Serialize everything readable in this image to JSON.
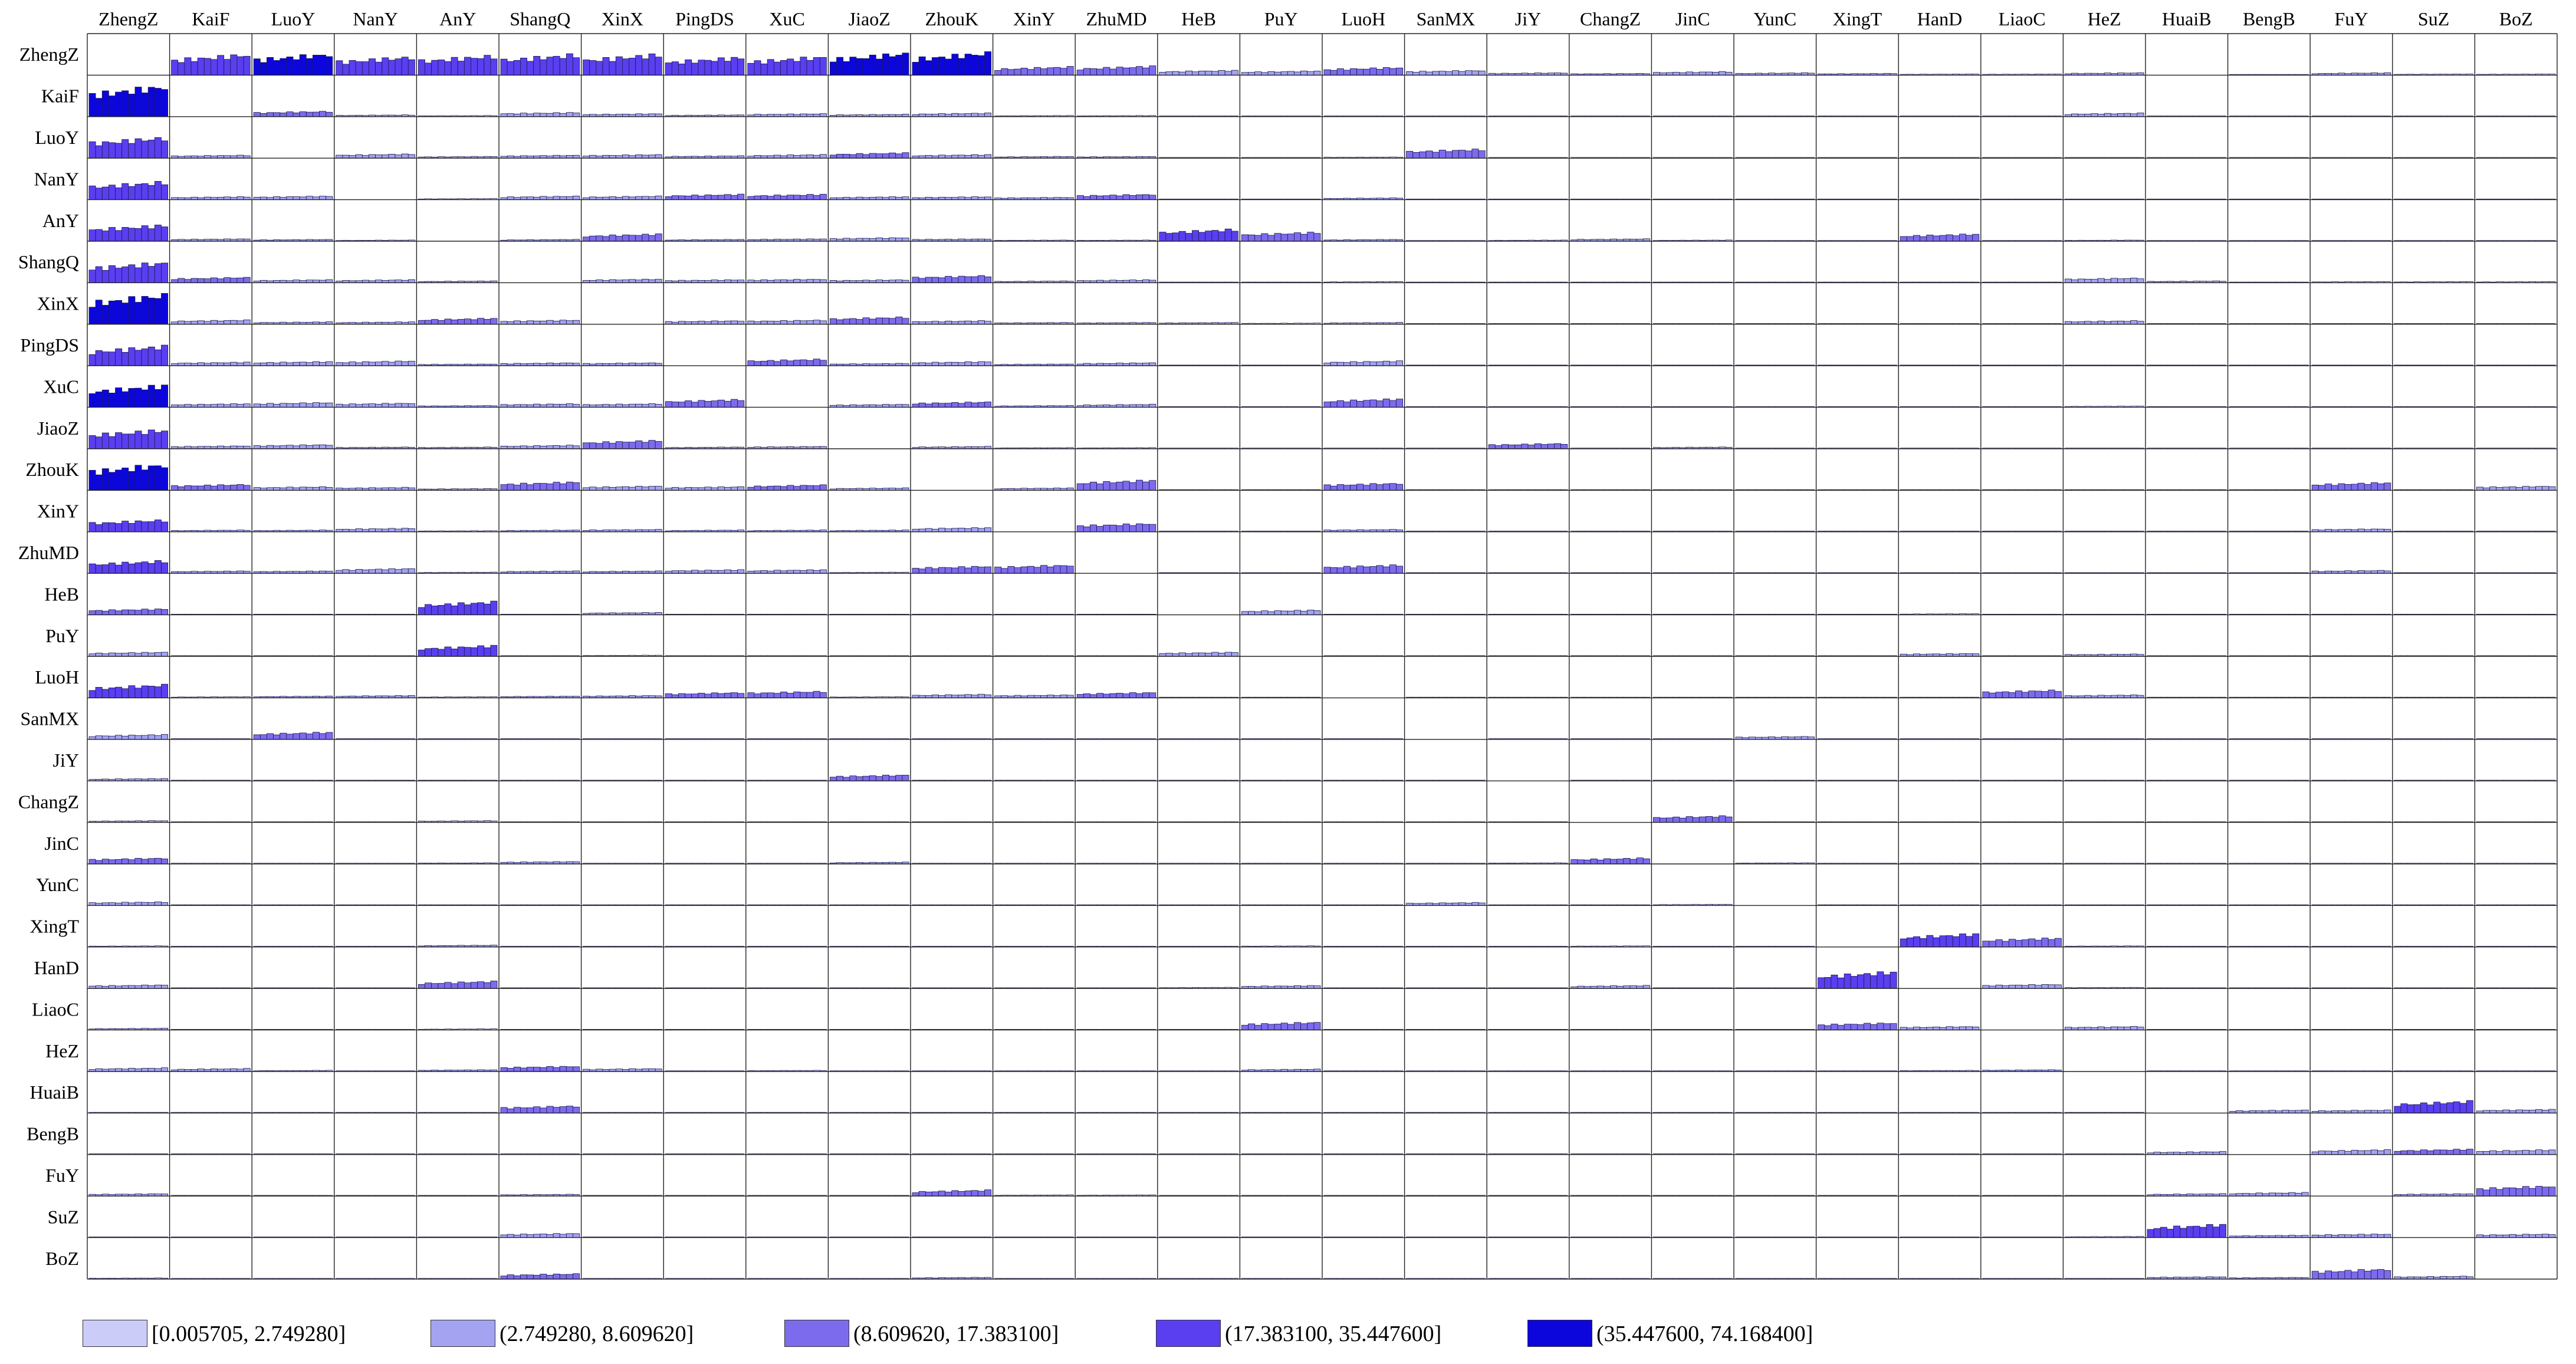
{
  "chart_data": {
    "type": "bar",
    "subtype": "origin-destination matrix of small-multiple bar charts (12 bars per cell)",
    "cities": [
      "ZhengZ",
      "KaiF",
      "LuoY",
      "NanY",
      "AnY",
      "ShangQ",
      "XinX",
      "PingDS",
      "XuC",
      "JiaoZ",
      "ZhouK",
      "XinY",
      "ZhuMD",
      "HeB",
      "PuY",
      "LuoH",
      "SanMX",
      "JiY",
      "ChangZ",
      "JinC",
      "YunC",
      "XingT",
      "HanD",
      "LiaoC",
      "HeZ",
      "HuaiB",
      "BengB",
      "FuY",
      "SuZ",
      "BoZ"
    ],
    "bars_per_cell": 12,
    "cell_ylim": [
      0,
      74.1684
    ],
    "grid": true,
    "legend_position": "bottom",
    "color_classes": [
      {
        "label": "[0.005705, 2.749280]",
        "min": 0.005705,
        "max": 2.74928,
        "color": "#ccccf9"
      },
      {
        "label": "(2.749280, 8.609620]",
        "min": 2.74928,
        "max": 8.60962,
        "color": "#a3a3f2"
      },
      {
        "label": "(8.609620, 17.383100]",
        "min": 8.60962,
        "max": 17.3831,
        "color": "#7d6bee"
      },
      {
        "label": "(17.383100, 35.447600]",
        "min": 17.3831,
        "max": 35.4476,
        "color": "#5a3ff0"
      },
      {
        "label": "(35.447600, 74.168400]",
        "min": 35.4476,
        "max": 74.1684,
        "color": "#0c06dd"
      }
    ],
    "cell_levels": [
      [
        0,
        35,
        36,
        31,
        33,
        35,
        35,
        30,
        31,
        37,
        38,
        14,
        15,
        8,
        7,
        13,
        8,
        4,
        3,
        6,
        4,
        3,
        2,
        2,
        4,
        0,
        1,
        4,
        2,
        2
      ],
      [
        52,
        0,
        9,
        3,
        2,
        7,
        5,
        3,
        5,
        4,
        6,
        2,
        2,
        0.5,
        0.5,
        1,
        0.5,
        0.3,
        0.2,
        0.3,
        0.2,
        0.2,
        0.2,
        0.2,
        6,
        0.05,
        0.05,
        0.3,
        0.05,
        0.05
      ],
      [
        35,
        5,
        0,
        7,
        3,
        5,
        6,
        4,
        6,
        9,
        6,
        3,
        3,
        1,
        0.5,
        2,
        15,
        1,
        0.5,
        0.5,
        0.5,
        0.3,
        0.3,
        0.3,
        1,
        0.05,
        0.05,
        0.5,
        0.05,
        0.05
      ],
      [
        30,
        5,
        6,
        0,
        2,
        6,
        6,
        9,
        9,
        5,
        5,
        4,
        9,
        0.3,
        0.3,
        3,
        1,
        0.3,
        0.2,
        0.2,
        0.2,
        0.1,
        0.1,
        0.1,
        1,
        0.05,
        0.05,
        0.5,
        0.05,
        0.05
      ],
      [
        27,
        4,
        3,
        2,
        0,
        3,
        12,
        3,
        4,
        6,
        4,
        2,
        2,
        20,
        15,
        3,
        1,
        2,
        4,
        2,
        1,
        1,
        12,
        1,
        2,
        0.1,
        0.1,
        0.5,
        0.1,
        0.1
      ],
      [
        34,
        9,
        5,
        5,
        3,
        0,
        6,
        5,
        6,
        5,
        12,
        3,
        5,
        0.5,
        0.3,
        2,
        1,
        0.5,
        0.2,
        0.2,
        0.2,
        0.1,
        0.2,
        0.2,
        8,
        3,
        0.5,
        2,
        2,
        2
      ],
      [
        50,
        7,
        4,
        4,
        10,
        7,
        0,
        6,
        7,
        12,
        6,
        3,
        3,
        3,
        2,
        3,
        1,
        1,
        0.5,
        0.5,
        0.3,
        0.3,
        1,
        0.5,
        6,
        0.1,
        0.1,
        0.5,
        0.1,
        0.1
      ],
      [
        33,
        6,
        7,
        8,
        3,
        5,
        5,
        0,
        11,
        4,
        7,
        3,
        5,
        0.3,
        0.3,
        8,
        1,
        0.3,
        0.2,
        0.2,
        0.2,
        0.1,
        0.1,
        0.1,
        1,
        0.05,
        0.05,
        0.5,
        0.05,
        0.05
      ],
      [
        37,
        6,
        8,
        7,
        3,
        6,
        6,
        13,
        0,
        5,
        9,
        3,
        5,
        0.3,
        0.3,
        14,
        1,
        0.3,
        0.2,
        0.2,
        0.2,
        0.1,
        0.1,
        0.1,
        2,
        0.05,
        0.3,
        0.3,
        0.3,
        0.3
      ],
      [
        32,
        5,
        7,
        3,
        3,
        6,
        14,
        3,
        4,
        0,
        4,
        2,
        2,
        0.5,
        0.5,
        1,
        1,
        9,
        0.5,
        3,
        0.5,
        0.3,
        0.3,
        0.3,
        0.5,
        0.05,
        0.3,
        0.5,
        0.05,
        0.05
      ],
      [
        44,
        10,
        6,
        5,
        3,
        14,
        7,
        6,
        9,
        4,
        0,
        4,
        17,
        0.3,
        0.3,
        12,
        0.5,
        0.3,
        0.2,
        0.2,
        0.2,
        0.1,
        0.1,
        0.1,
        1,
        0.1,
        0.3,
        13,
        1,
        7
      ],
      [
        20,
        3,
        3,
        6,
        2,
        3,
        4,
        3,
        3,
        3,
        7,
        0,
        14,
        0.2,
        0.2,
        4,
        0.3,
        0.2,
        0.1,
        0.1,
        0.1,
        0.1,
        0.1,
        0.1,
        0.5,
        0.05,
        0.05,
        5,
        0.3,
        0.3
      ],
      [
        21,
        4,
        4,
        8,
        2,
        4,
        4,
        6,
        6,
        2,
        12,
        14,
        0,
        0.2,
        0.2,
        14,
        0.3,
        0.2,
        0.1,
        0.1,
        0.1,
        0.1,
        0.1,
        0.1,
        0.5,
        0.05,
        0.05,
        5,
        0.3,
        0.3
      ],
      [
        10,
        0.5,
        1,
        0.3,
        22,
        0.5,
        4,
        0.3,
        0.3,
        0.5,
        0.3,
        0.2,
        0.2,
        0,
        8,
        0.2,
        0.2,
        0.1,
        0.5,
        0.2,
        0.1,
        0.3,
        2,
        0.3,
        0.5,
        0.05,
        0.05,
        0.2,
        0.05,
        0.05
      ],
      [
        7,
        0.5,
        0.5,
        0.3,
        18,
        0.3,
        2,
        0.3,
        0.3,
        0.5,
        0.3,
        0.2,
        0.2,
        7,
        0,
        0.2,
        0.2,
        0.1,
        0.2,
        0.2,
        0.1,
        0.3,
        5,
        1,
        4,
        0.05,
        0.05,
        0.2,
        0.05,
        0.05
      ],
      [
        22,
        2,
        3,
        4,
        2,
        3,
        4,
        9,
        11,
        2,
        6,
        5,
        9,
        0.2,
        0.2,
        0,
        0.3,
        0.2,
        0.1,
        0.1,
        0.1,
        0.1,
        0.5,
        13,
        5,
        0.05,
        0.05,
        0.5,
        0.05,
        0.05
      ],
      [
        8,
        0.5,
        12,
        0.5,
        0.5,
        0.5,
        1,
        0.5,
        0.5,
        0.5,
        0.5,
        0.2,
        0.2,
        0.2,
        0.2,
        0.2,
        0,
        0.2,
        0.1,
        0.2,
        5,
        0.1,
        0.1,
        0.1,
        0.2,
        0.05,
        0.05,
        0.1,
        0.05,
        0.05
      ],
      [
        4,
        0.3,
        1,
        0.3,
        0.5,
        0.3,
        1,
        0.3,
        0.3,
        10,
        0.3,
        0.1,
        0.1,
        0.1,
        0.1,
        0.1,
        0.2,
        0,
        0.2,
        1,
        1,
        0.1,
        0.1,
        0.1,
        0.1,
        0.05,
        0.05,
        0.1,
        0.05,
        0.05
      ],
      [
        3,
        0.3,
        0.5,
        0.2,
        3,
        0.3,
        0.5,
        0.2,
        0.2,
        0.5,
        0.2,
        0.1,
        0.1,
        0.3,
        0.1,
        0.1,
        0.1,
        0.3,
        0,
        11,
        1,
        1,
        1,
        1,
        0.5,
        0.05,
        0.05,
        0.1,
        0.05,
        0.05
      ],
      [
        10,
        0.3,
        1,
        0.3,
        2,
        4,
        1,
        0.3,
        0.3,
        3,
        0.3,
        0.1,
        0.1,
        0.2,
        0.1,
        0.1,
        0.5,
        2,
        10,
        0,
        2,
        0.5,
        0.5,
        0.5,
        0.3,
        0.05,
        0.05,
        0.1,
        0.05,
        0.05
      ],
      [
        6,
        0.3,
        1,
        0.3,
        0.5,
        0.3,
        0.5,
        0.2,
        0.2,
        0.5,
        0.2,
        0.1,
        0.1,
        0.1,
        0.1,
        0.1,
        5,
        1,
        1,
        2,
        0,
        0.1,
        0.1,
        0.1,
        0.1,
        0.05,
        0.05,
        0.1,
        0.05,
        0.05
      ],
      [
        2,
        0.2,
        0.2,
        0.1,
        3,
        0.2,
        0.3,
        0.1,
        0.1,
        0.2,
        0.1,
        0.1,
        0.1,
        0.3,
        2,
        0.1,
        0.1,
        0.1,
        2,
        0.5,
        0.1,
        0,
        22,
        15,
        2,
        0.05,
        0.05,
        0.1,
        0.05,
        0.05
      ],
      [
        6,
        0.3,
        0.5,
        0.3,
        12,
        0.5,
        1,
        0.3,
        0.3,
        0.5,
        0.3,
        0.1,
        0.1,
        2,
        5,
        0.3,
        0.1,
        0.1,
        5,
        1,
        0.1,
        28,
        0,
        7,
        2,
        0.05,
        0.05,
        0.1,
        0.05,
        0.05
      ],
      [
        3,
        0.3,
        0.3,
        0.2,
        2,
        0.3,
        0.5,
        0.2,
        0.2,
        0.3,
        0.2,
        0.1,
        0.1,
        0.3,
        13,
        1,
        0.1,
        0.1,
        1,
        0.5,
        0.1,
        12,
        6,
        0,
        6,
        0.05,
        0.05,
        0.1,
        0.05,
        0.05
      ],
      [
        6,
        5,
        2,
        1,
        3,
        9,
        5,
        1,
        2,
        0.5,
        1,
        0.5,
        0.5,
        0.5,
        4,
        1,
        0.2,
        0.1,
        0.5,
        0.3,
        0.1,
        1,
        2,
        3,
        0,
        0.05,
        0.05,
        0.3,
        0.05,
        0.05
      ],
      [
        0.3,
        0.05,
        0.05,
        0.05,
        0.1,
        12,
        0.1,
        0.05,
        0.05,
        0.05,
        0.1,
        0.05,
        0.05,
        0.05,
        0.05,
        0.05,
        0.05,
        0.05,
        0.05,
        0.05,
        0.05,
        0.05,
        0.05,
        0.05,
        0.05,
        0,
        5,
        5,
        20,
        6
      ],
      [
        1,
        0.05,
        0.05,
        0.05,
        0.1,
        1,
        0.1,
        0.05,
        0.05,
        0.05,
        0.3,
        0.05,
        0.05,
        0.05,
        0.05,
        0.05,
        0.05,
        0.05,
        0.05,
        0.05,
        0.05,
        0.05,
        0.05,
        0.05,
        0.05,
        5,
        0,
        8,
        9,
        8
      ],
      [
        4,
        0.3,
        0.5,
        0.5,
        0.3,
        3,
        0.5,
        0.3,
        0.3,
        0.3,
        10,
        2,
        2,
        0.1,
        0.1,
        0.3,
        0.1,
        0.1,
        0.1,
        0.1,
        0.1,
        0.1,
        0.1,
        0.1,
        0.3,
        4,
        6,
        0,
        4,
        17
      ],
      [
        1,
        0.05,
        0.05,
        0.05,
        0.1,
        7,
        0.1,
        0.05,
        0.05,
        0.05,
        0.3,
        0.05,
        0.05,
        0.05,
        0.05,
        0.05,
        0.05,
        0.05,
        0.05,
        0.05,
        0.05,
        0.05,
        0.05,
        0.05,
        2,
        22,
        4,
        6,
        0,
        6
      ],
      [
        2,
        0.05,
        0.05,
        0.05,
        0.1,
        9,
        0.1,
        0.05,
        0.05,
        0.05,
        3,
        0.05,
        0.05,
        0.05,
        0.05,
        0.05,
        0.05,
        0.05,
        0.05,
        0.05,
        0.05,
        0.05,
        0.05,
        0.05,
        0.3,
        4,
        3,
        17,
        5,
        0
      ]
    ]
  }
}
